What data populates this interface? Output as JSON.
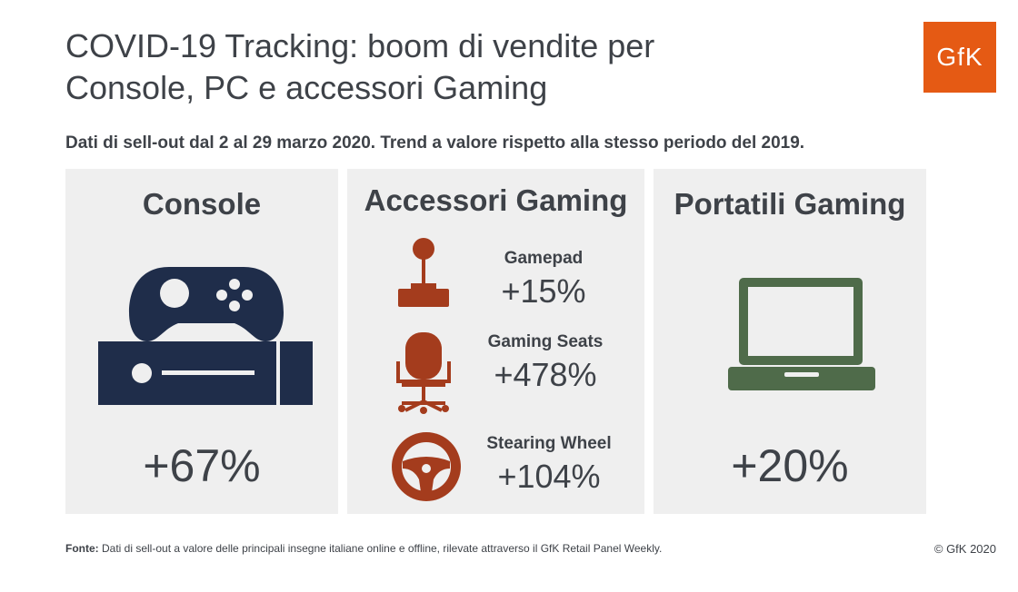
{
  "title": {
    "line1": "COVID-19 Tracking: boom di vendite per",
    "line2": "Console, PC e accessori Gaming"
  },
  "logo_text": "GfK",
  "subtitle": "Dati di sell-out dal 2 al 29 marzo 2020. Trend a valore rispetto alla stesso periodo del 2019.",
  "colors": {
    "navy": "#1f2d4a",
    "brown": "#a43c1d",
    "green": "#4f6b4a",
    "panel_bg": "#efefef",
    "logo_orange": "#e55a14"
  },
  "chart_data": {
    "type": "table",
    "categories": [
      {
        "name": "Console",
        "value": "+67%",
        "icon": "game-console-icon"
      },
      {
        "name": "Accessori Gaming",
        "items": [
          {
            "name": "Gamepad",
            "value": "+15%",
            "icon": "joystick-icon"
          },
          {
            "name": "Gaming Seats",
            "value": "+478%",
            "icon": "gaming-chair-icon"
          },
          {
            "name": "Stearing Wheel",
            "value": "+104%",
            "icon": "steering-wheel-icon"
          }
        ]
      },
      {
        "name": "Portatili Gaming",
        "value": "+20%",
        "icon": "laptop-icon"
      }
    ]
  },
  "footer": {
    "source_label": "Fonte:",
    "source_text": " Dati di sell-out a valore delle principali insegne italiane online e offline, rilevate attraverso il GfK Retail Panel Weekly.",
    "copyright": "© GfK 2020"
  }
}
